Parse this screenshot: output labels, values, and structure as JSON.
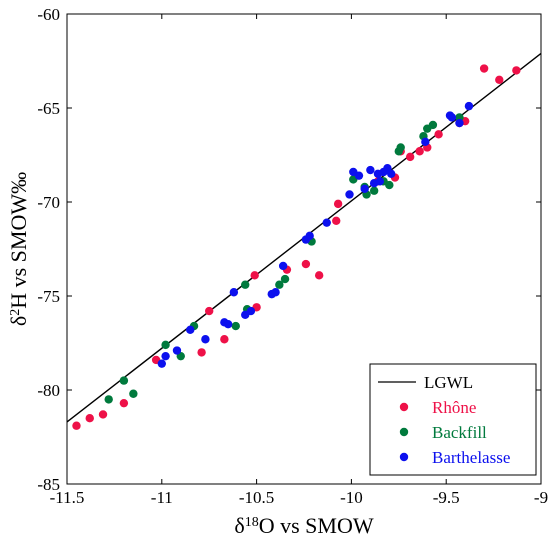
{
  "chart_data": {
    "type": "scatter",
    "xlabel": {
      "prefix": "δ",
      "sup": "18",
      "suffix": "O vs SMOW"
    },
    "ylabel": {
      "prefix": "δ",
      "sup": "2",
      "suffix": "H vs SMOW‰"
    },
    "xlim": [
      -11.5,
      -9
    ],
    "ylim": [
      -85,
      -60
    ],
    "xticks": [
      -11.5,
      -11,
      -10.5,
      -10,
      -9.5,
      -9
    ],
    "yticks": [
      -85,
      -80,
      -75,
      -70,
      -65,
      -60
    ],
    "xtick_labels": [
      "-11.5",
      "-11",
      "-10.5",
      "-10",
      "-9.5",
      "-9"
    ],
    "ytick_labels": [
      "-85",
      "-80",
      "-75",
      "-70",
      "-65",
      "-60"
    ],
    "grid": false,
    "legend": "bottom-right",
    "line": {
      "name": "LGWL",
      "color": "#000000",
      "x": [
        -11.5,
        -9
      ],
      "y": [
        -81.7,
        -62.1
      ]
    },
    "series": [
      {
        "name": "Rhône",
        "color": "#ee1148",
        "points": [
          [
            -11.45,
            -81.9
          ],
          [
            -11.38,
            -81.5
          ],
          [
            -11.31,
            -81.3
          ],
          [
            -11.2,
            -80.7
          ],
          [
            -11.03,
            -78.4
          ],
          [
            -10.79,
            -78.0
          ],
          [
            -10.75,
            -75.8
          ],
          [
            -10.67,
            -77.3
          ],
          [
            -10.51,
            -73.9
          ],
          [
            -10.5,
            -75.6
          ],
          [
            -10.34,
            -73.6
          ],
          [
            -10.24,
            -73.3
          ],
          [
            -10.17,
            -73.9
          ],
          [
            -10.08,
            -71.0
          ],
          [
            -10.07,
            -70.1
          ],
          [
            -9.86,
            -68.9
          ],
          [
            -9.77,
            -68.7
          ],
          [
            -9.74,
            -67.3
          ],
          [
            -9.69,
            -67.6
          ],
          [
            -9.64,
            -67.3
          ],
          [
            -9.6,
            -67.1
          ],
          [
            -9.54,
            -66.4
          ],
          [
            -9.43,
            -65.8
          ],
          [
            -9.4,
            -65.7
          ],
          [
            -9.3,
            -62.9
          ],
          [
            -9.22,
            -63.5
          ],
          [
            -9.13,
            -63.0
          ]
        ]
      },
      {
        "name": "Backfill",
        "color": "#007a3d",
        "points": [
          [
            -11.28,
            -80.5
          ],
          [
            -11.2,
            -79.5
          ],
          [
            -11.15,
            -80.2
          ],
          [
            -10.98,
            -77.6
          ],
          [
            -10.9,
            -78.2
          ],
          [
            -10.83,
            -76.6
          ],
          [
            -10.61,
            -76.6
          ],
          [
            -10.56,
            -74.4
          ],
          [
            -10.55,
            -75.7
          ],
          [
            -10.38,
            -74.4
          ],
          [
            -10.35,
            -74.1
          ],
          [
            -10.21,
            -72.1
          ],
          [
            -9.99,
            -68.8
          ],
          [
            -9.93,
            -69.2
          ],
          [
            -9.92,
            -69.6
          ],
          [
            -9.88,
            -69.4
          ],
          [
            -9.83,
            -68.9
          ],
          [
            -9.8,
            -69.1
          ],
          [
            -9.75,
            -67.3
          ],
          [
            -9.74,
            -67.1
          ],
          [
            -9.62,
            -66.5
          ],
          [
            -9.6,
            -66.1
          ],
          [
            -9.57,
            -65.9
          ],
          [
            -9.43,
            -65.5
          ]
        ]
      },
      {
        "name": "Barthelasse",
        "color": "#0c10ee",
        "points": [
          [
            -11.0,
            -78.6
          ],
          [
            -10.98,
            -78.2
          ],
          [
            -10.92,
            -77.9
          ],
          [
            -10.85,
            -76.8
          ],
          [
            -10.77,
            -77.3
          ],
          [
            -10.67,
            -76.4
          ],
          [
            -10.65,
            -76.5
          ],
          [
            -10.62,
            -74.8
          ],
          [
            -10.56,
            -76.0
          ],
          [
            -10.53,
            -75.8
          ],
          [
            -10.42,
            -74.9
          ],
          [
            -10.4,
            -74.8
          ],
          [
            -10.36,
            -73.4
          ],
          [
            -10.24,
            -72.0
          ],
          [
            -10.22,
            -71.8
          ],
          [
            -10.13,
            -71.1
          ],
          [
            -10.01,
            -69.6
          ],
          [
            -9.99,
            -68.4
          ],
          [
            -9.96,
            -68.6
          ],
          [
            -9.93,
            -69.3
          ],
          [
            -9.9,
            -68.3
          ],
          [
            -9.88,
            -69.0
          ],
          [
            -9.86,
            -68.5
          ],
          [
            -9.85,
            -68.9
          ],
          [
            -9.83,
            -68.4
          ],
          [
            -9.81,
            -68.2
          ],
          [
            -9.79,
            -68.5
          ],
          [
            -9.61,
            -66.8
          ],
          [
            -9.48,
            -65.4
          ],
          [
            -9.47,
            -65.5
          ],
          [
            -9.43,
            -65.8
          ],
          [
            -9.38,
            -64.9
          ]
        ]
      }
    ]
  }
}
